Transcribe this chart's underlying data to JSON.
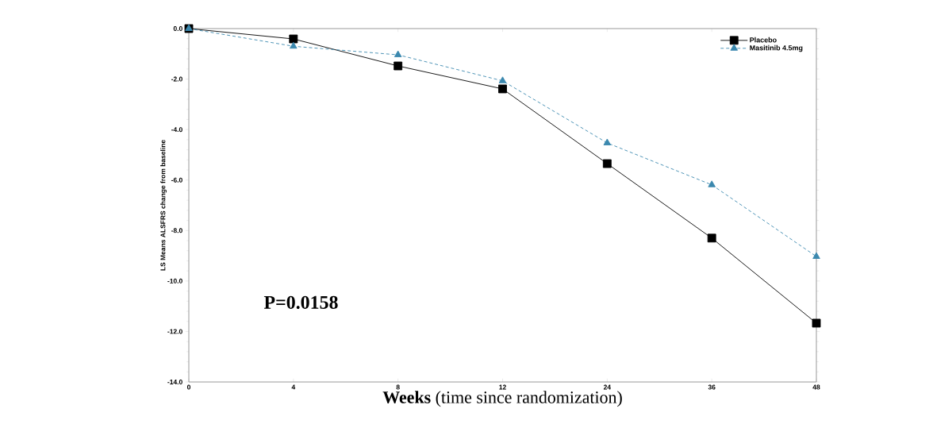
{
  "chart_data": {
    "type": "line",
    "xlabel": "**Weeks** (time since randomization)",
    "ylabel": "LS Means ALSFRS change from baseline",
    "categories": [
      "0",
      "4",
      "8",
      "12",
      "24",
      "36",
      "48"
    ],
    "series": [
      {
        "name": "Placebo",
        "color": "#000000",
        "marker": "square",
        "line_style": "solid",
        "values": [
          0,
          -0.41,
          -1.48,
          -2.39,
          -5.35,
          -8.3,
          -11.67
        ]
      },
      {
        "name": "Masitinib 4.5mg",
        "color": "#3b88ae",
        "marker": "triangle",
        "line_style": "dashed",
        "values": [
          0,
          -0.7,
          -1.04,
          -2.07,
          -4.53,
          -6.19,
          -9.03
        ]
      }
    ],
    "ylim": [
      -14,
      0
    ],
    "yticks": [
      {
        "value": -14,
        "label": "-14.0"
      },
      {
        "value": -12,
        "label": "-12.0"
      },
      {
        "value": -10,
        "label": "-10.0"
      },
      {
        "value": -8,
        "label": "-8.0"
      },
      {
        "value": -6,
        "label": "-6.0"
      },
      {
        "value": -4,
        "label": "-4.0"
      },
      {
        "value": -2,
        "label": "-2.0"
      },
      {
        "value": 0,
        "label": "0.0"
      }
    ],
    "annotations": [
      "P=0.0158"
    ],
    "grid": false,
    "legend": "top right"
  }
}
